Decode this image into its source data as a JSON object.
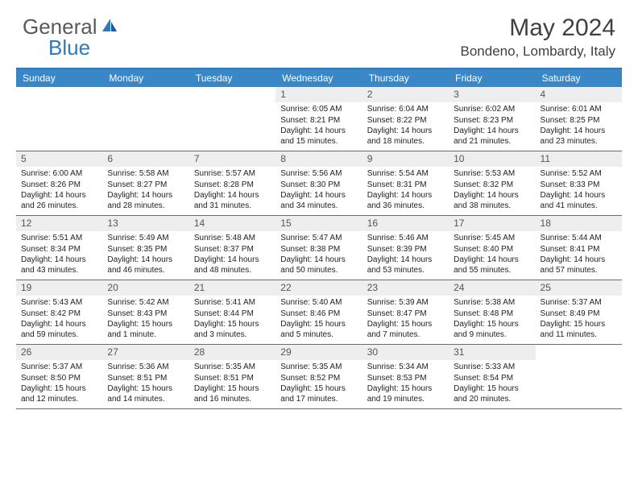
{
  "brand": {
    "part1": "General",
    "part2": "Blue"
  },
  "title": "May 2024",
  "location": "Bondeno, Lombardy, Italy",
  "colors": {
    "header_bg": "#3a87c8",
    "border": "#2f7abf",
    "daynum_bg": "#eceeef",
    "text": "#222222",
    "logo_gray": "#5a5a5a",
    "logo_blue": "#2f7abf"
  },
  "day_headers": [
    "Sunday",
    "Monday",
    "Tuesday",
    "Wednesday",
    "Thursday",
    "Friday",
    "Saturday"
  ],
  "weeks": [
    [
      null,
      null,
      null,
      {
        "n": "1",
        "sr": "6:05 AM",
        "ss": "8:21 PM",
        "dl": "14 hours and 15 minutes."
      },
      {
        "n": "2",
        "sr": "6:04 AM",
        "ss": "8:22 PM",
        "dl": "14 hours and 18 minutes."
      },
      {
        "n": "3",
        "sr": "6:02 AM",
        "ss": "8:23 PM",
        "dl": "14 hours and 21 minutes."
      },
      {
        "n": "4",
        "sr": "6:01 AM",
        "ss": "8:25 PM",
        "dl": "14 hours and 23 minutes."
      }
    ],
    [
      {
        "n": "5",
        "sr": "6:00 AM",
        "ss": "8:26 PM",
        "dl": "14 hours and 26 minutes."
      },
      {
        "n": "6",
        "sr": "5:58 AM",
        "ss": "8:27 PM",
        "dl": "14 hours and 28 minutes."
      },
      {
        "n": "7",
        "sr": "5:57 AM",
        "ss": "8:28 PM",
        "dl": "14 hours and 31 minutes."
      },
      {
        "n": "8",
        "sr": "5:56 AM",
        "ss": "8:30 PM",
        "dl": "14 hours and 34 minutes."
      },
      {
        "n": "9",
        "sr": "5:54 AM",
        "ss": "8:31 PM",
        "dl": "14 hours and 36 minutes."
      },
      {
        "n": "10",
        "sr": "5:53 AM",
        "ss": "8:32 PM",
        "dl": "14 hours and 38 minutes."
      },
      {
        "n": "11",
        "sr": "5:52 AM",
        "ss": "8:33 PM",
        "dl": "14 hours and 41 minutes."
      }
    ],
    [
      {
        "n": "12",
        "sr": "5:51 AM",
        "ss": "8:34 PM",
        "dl": "14 hours and 43 minutes."
      },
      {
        "n": "13",
        "sr": "5:49 AM",
        "ss": "8:35 PM",
        "dl": "14 hours and 46 minutes."
      },
      {
        "n": "14",
        "sr": "5:48 AM",
        "ss": "8:37 PM",
        "dl": "14 hours and 48 minutes."
      },
      {
        "n": "15",
        "sr": "5:47 AM",
        "ss": "8:38 PM",
        "dl": "14 hours and 50 minutes."
      },
      {
        "n": "16",
        "sr": "5:46 AM",
        "ss": "8:39 PM",
        "dl": "14 hours and 53 minutes."
      },
      {
        "n": "17",
        "sr": "5:45 AM",
        "ss": "8:40 PM",
        "dl": "14 hours and 55 minutes."
      },
      {
        "n": "18",
        "sr": "5:44 AM",
        "ss": "8:41 PM",
        "dl": "14 hours and 57 minutes."
      }
    ],
    [
      {
        "n": "19",
        "sr": "5:43 AM",
        "ss": "8:42 PM",
        "dl": "14 hours and 59 minutes."
      },
      {
        "n": "20",
        "sr": "5:42 AM",
        "ss": "8:43 PM",
        "dl": "15 hours and 1 minute."
      },
      {
        "n": "21",
        "sr": "5:41 AM",
        "ss": "8:44 PM",
        "dl": "15 hours and 3 minutes."
      },
      {
        "n": "22",
        "sr": "5:40 AM",
        "ss": "8:46 PM",
        "dl": "15 hours and 5 minutes."
      },
      {
        "n": "23",
        "sr": "5:39 AM",
        "ss": "8:47 PM",
        "dl": "15 hours and 7 minutes."
      },
      {
        "n": "24",
        "sr": "5:38 AM",
        "ss": "8:48 PM",
        "dl": "15 hours and 9 minutes."
      },
      {
        "n": "25",
        "sr": "5:37 AM",
        "ss": "8:49 PM",
        "dl": "15 hours and 11 minutes."
      }
    ],
    [
      {
        "n": "26",
        "sr": "5:37 AM",
        "ss": "8:50 PM",
        "dl": "15 hours and 12 minutes."
      },
      {
        "n": "27",
        "sr": "5:36 AM",
        "ss": "8:51 PM",
        "dl": "15 hours and 14 minutes."
      },
      {
        "n": "28",
        "sr": "5:35 AM",
        "ss": "8:51 PM",
        "dl": "15 hours and 16 minutes."
      },
      {
        "n": "29",
        "sr": "5:35 AM",
        "ss": "8:52 PM",
        "dl": "15 hours and 17 minutes."
      },
      {
        "n": "30",
        "sr": "5:34 AM",
        "ss": "8:53 PM",
        "dl": "15 hours and 19 minutes."
      },
      {
        "n": "31",
        "sr": "5:33 AM",
        "ss": "8:54 PM",
        "dl": "15 hours and 20 minutes."
      },
      null
    ]
  ],
  "labels": {
    "sunrise": "Sunrise: ",
    "sunset": "Sunset: ",
    "daylight": "Daylight: "
  }
}
